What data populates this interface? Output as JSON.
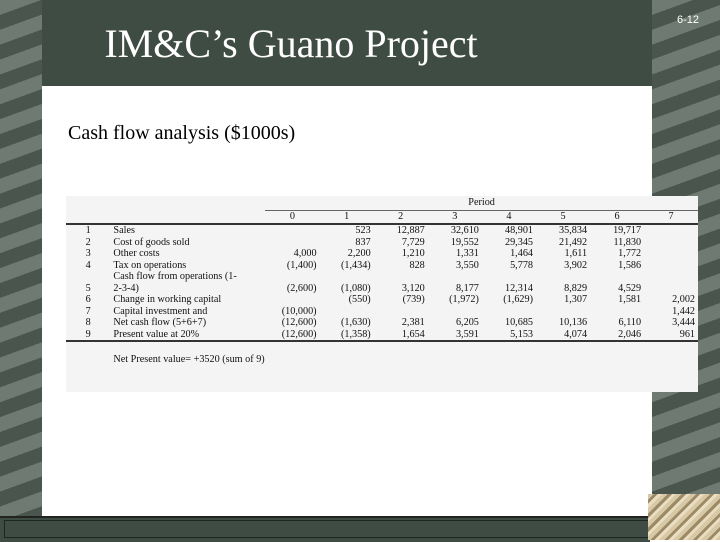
{
  "slide": {
    "title": "IM&C’s Guano Project",
    "page_number": "6-12",
    "subtitle": "Cash flow analysis ($1000s)"
  },
  "table": {
    "period_label": "Period",
    "periods": [
      "0",
      "1",
      "2",
      "3",
      "4",
      "5",
      "6",
      "7"
    ],
    "rows": [
      {
        "n": "1",
        "label": "Sales",
        "vals": [
          "",
          "523",
          "12,887",
          "32,610",
          "48,901",
          "35,834",
          "19,717",
          ""
        ]
      },
      {
        "n": "2",
        "label": "Cost of goods sold",
        "vals": [
          "",
          "837",
          "7,729",
          "19,552",
          "29,345",
          "21,492",
          "11,830",
          ""
        ]
      },
      {
        "n": "3",
        "label": "Other costs",
        "vals": [
          "4,000",
          "2,200",
          "1,210",
          "1,331",
          "1,464",
          "1,611",
          "1,772",
          ""
        ]
      },
      {
        "n": "4",
        "label": "Tax on operations",
        "vals": [
          "(1,400)",
          "(1,434)",
          "828",
          "3,550",
          "5,778",
          "3,902",
          "1,586",
          ""
        ]
      },
      {
        "n": "",
        "label": "Cash flow from operations (1-",
        "vals": [
          "",
          "",
          "",
          "",
          "",
          "",
          "",
          ""
        ]
      },
      {
        "n": "5",
        "label": "2-3-4)",
        "vals": [
          "(2,600)",
          "(1,080)",
          "3,120",
          "8,177",
          "12,314",
          "8,829",
          "4,529",
          ""
        ]
      },
      {
        "n": "6",
        "label": "Change in working capital",
        "vals": [
          "",
          "(550)",
          "(739)",
          "(1,972)",
          "(1,629)",
          "1,307",
          "1,581",
          "2,002"
        ]
      },
      {
        "n": "7",
        "label": "Capital investment and",
        "vals": [
          "(10,000)",
          "",
          "",
          "",
          "",
          "",
          "",
          "1,442"
        ]
      },
      {
        "n": "8",
        "label": "Net cash flow (5+6+7)",
        "vals": [
          "(12,600)",
          "(1,630)",
          "2,381",
          "6,205",
          "10,685",
          "10,136",
          "6,110",
          "3,444"
        ]
      },
      {
        "n": "9",
        "label": "Present value at 20%",
        "vals": [
          "(12,600)",
          "(1,358)",
          "1,654",
          "3,591",
          "5,153",
          "4,074",
          "2,046",
          "961"
        ]
      }
    ],
    "npv_text": "Net Present value= +3520 (sum of 9)"
  }
}
